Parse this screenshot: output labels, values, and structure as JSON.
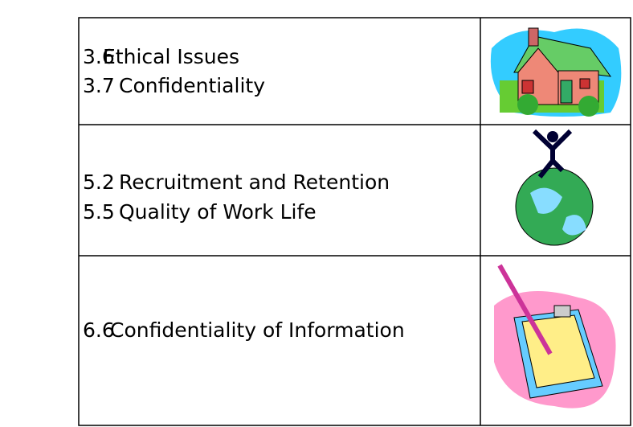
{
  "table": {
    "rows": [
      {
        "items": [
          {
            "number": "3.6",
            "text": "Ethical Issues"
          },
          {
            "number": "3.7",
            "text": "Confidentiality"
          }
        ]
      },
      {
        "items": [
          {
            "number": "5.2",
            "text": "Recruitment and Retention"
          },
          {
            "number": "5.5",
            "text": "Quality of Work Life"
          }
        ]
      },
      {
        "items": [
          {
            "number": "6.6",
            "text": "Confidentiality of Information"
          }
        ]
      }
    ]
  }
}
